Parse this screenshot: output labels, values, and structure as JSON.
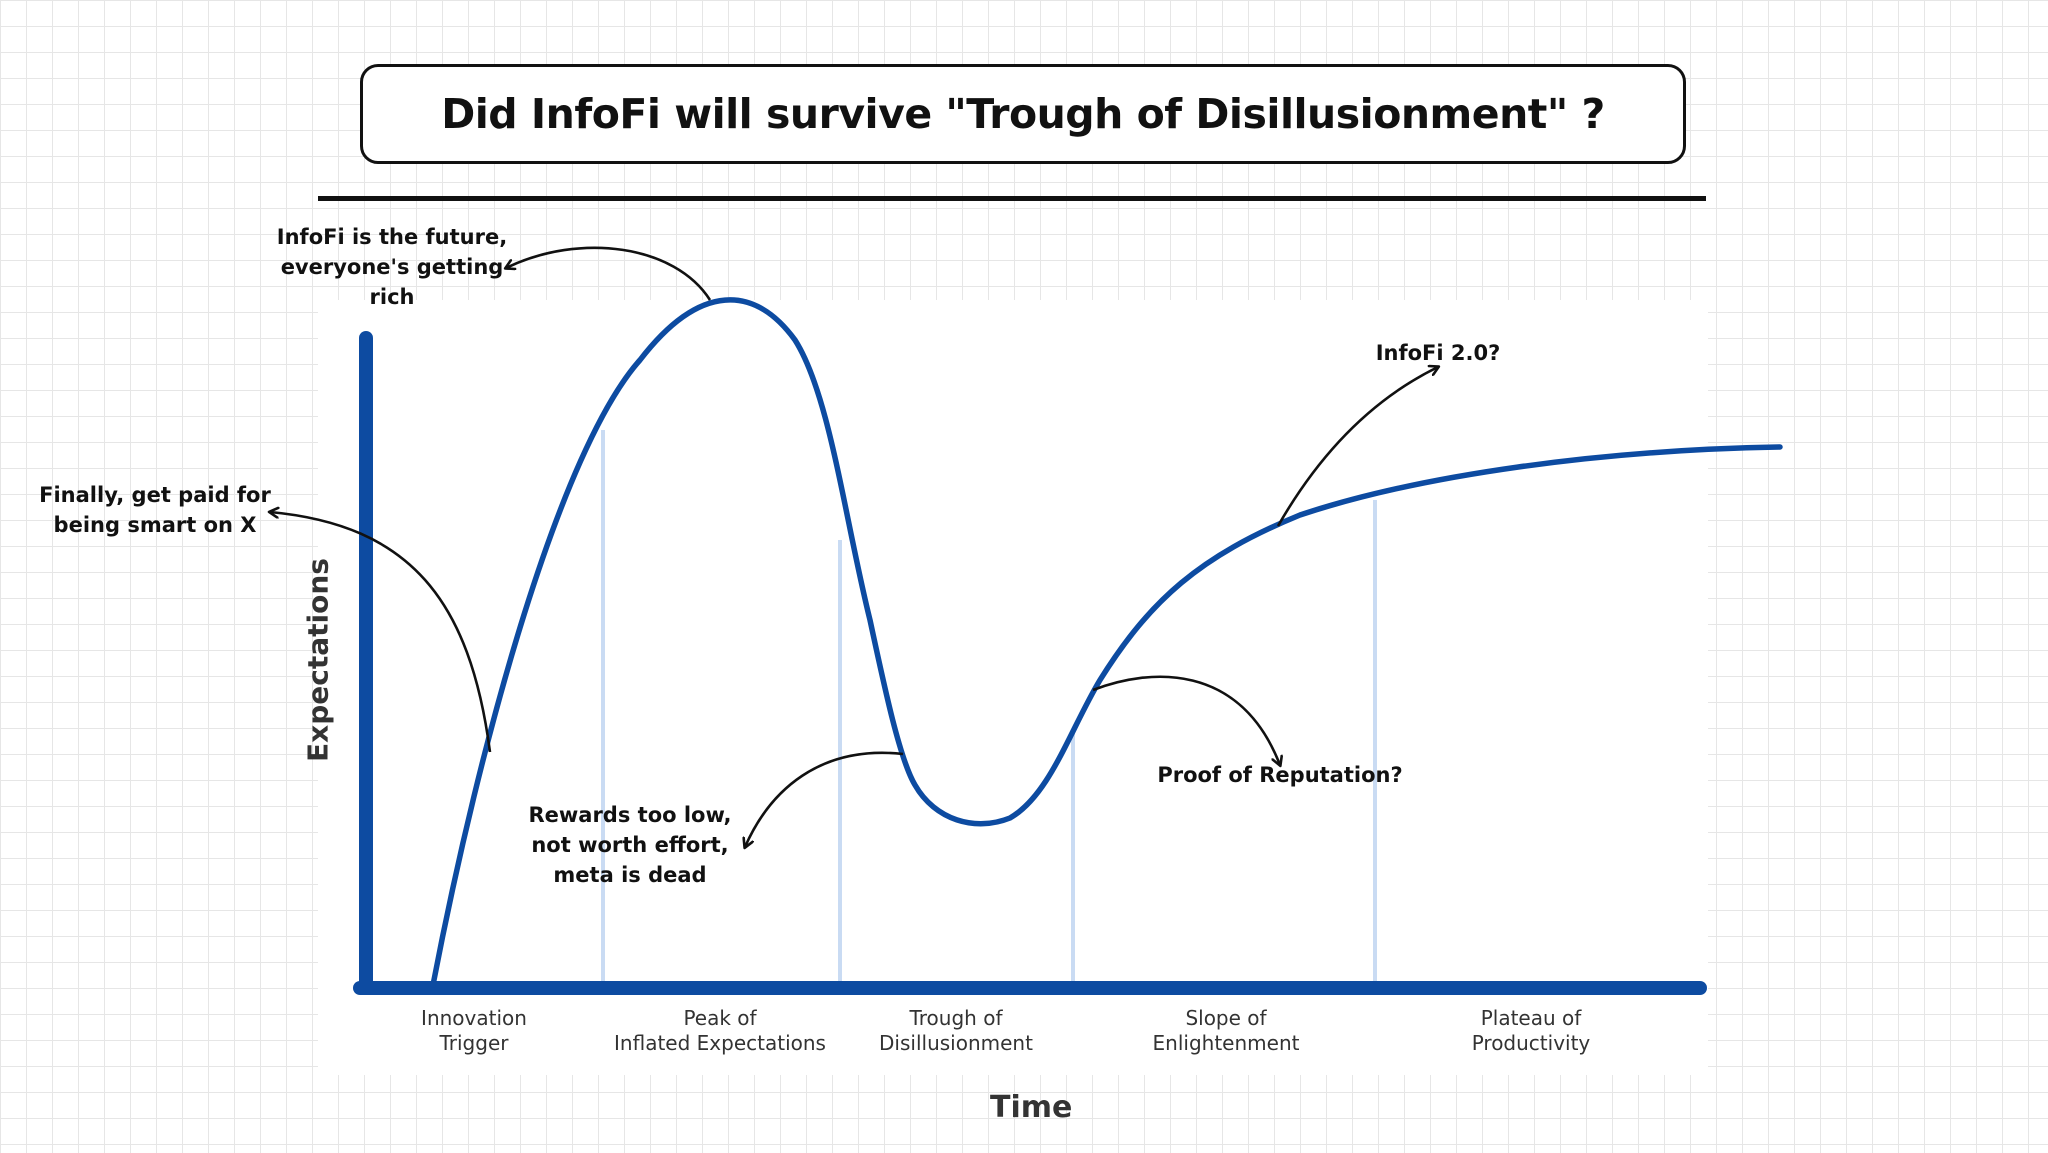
{
  "title": "Did InfoFi will survive \"Trough of Disillusionment\" ?",
  "axes": {
    "x_label": "Time",
    "y_label": "Expectations"
  },
  "phases": [
    {
      "label": "Innovation\nTrigger"
    },
    {
      "label": "Peak of\nInflated Expectations"
    },
    {
      "label": "Trough of\nDisillusionment"
    },
    {
      "label": "Slope of\nEnlightenment"
    },
    {
      "label": "Plateau of\nProductivity"
    }
  ],
  "annotations": [
    {
      "text": "Finally, get paid for\nbeing smart on X"
    },
    {
      "text": "InfoFi is the future,\neveryone's getting\nrich"
    },
    {
      "text": "Rewards too low,\nnot worth effort,\nmeta is dead"
    },
    {
      "text": "Proof of Reputation?"
    },
    {
      "text": "InfoFi 2.0?"
    }
  ],
  "colors": {
    "curve": "#0d4ba1",
    "axis": "#0d4ba1",
    "phase_divider": "#c9dbf3",
    "arrow": "#111111"
  }
}
